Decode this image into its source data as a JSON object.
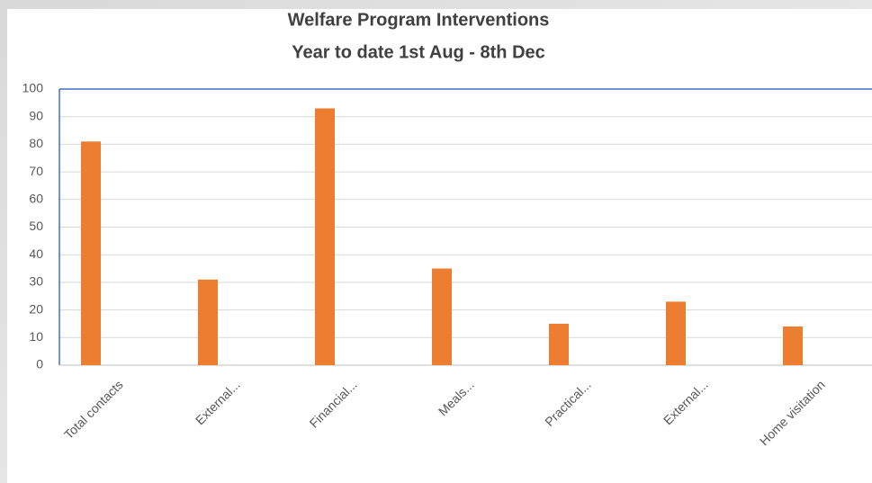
{
  "chart_data": {
    "type": "bar",
    "title": "Welfare Program Interventions",
    "subtitle": "Year to date 1st Aug - 8th Dec",
    "categories": [
      "Total contacts",
      "External...",
      "Financial...",
      "Meals...",
      "Practical...",
      "External...",
      "Home visitation"
    ],
    "values": [
      81,
      31,
      93,
      35,
      15,
      23,
      14
    ],
    "color": "#ed7d31",
    "ylim": [
      0,
      100
    ],
    "yticks": [
      0,
      10,
      20,
      30,
      40,
      50,
      60,
      70,
      80,
      90,
      100
    ],
    "grid": true
  }
}
